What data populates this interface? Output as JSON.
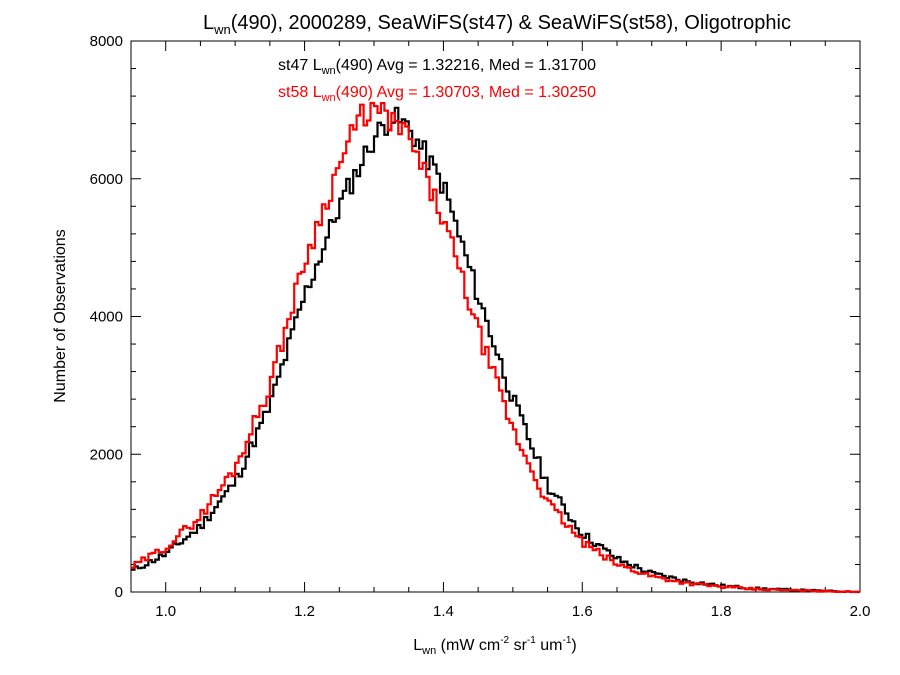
{
  "chart_data": {
    "type": "line",
    "title": {
      "main": "L",
      "sub": "wn",
      "rest": "(490), 2000289, SeaWiFS(st47) & SeaWiFS(st58), Oligotrophic"
    },
    "xlabel": {
      "main": "L",
      "sub": "wn",
      "pre": " (mW cm",
      "sup1": "-2",
      "mid": " sr",
      "sup2": "-1",
      "mid2": " um",
      "sup3": "-1",
      "post": ")"
    },
    "ylabel": "Number of Observations",
    "xlim": [
      0.95,
      2.0
    ],
    "ylim": [
      0,
      8000
    ],
    "xticks": [
      1.0,
      1.2,
      1.4,
      1.6,
      1.8,
      2.0
    ],
    "xtick_labels": [
      "1.0",
      "1.2",
      "1.4",
      "1.6",
      "1.8",
      "2.0"
    ],
    "yticks": [
      0,
      2000,
      4000,
      6000,
      8000
    ],
    "ytick_labels": [
      "0",
      "2000",
      "4000",
      "6000",
      "8000"
    ],
    "grid": false,
    "legend": [
      {
        "prefix": "st47 L",
        "sub": "wn",
        "suffix": "(490) Avg = 1.32216, Med = 1.31700",
        "color": "#000000"
      },
      {
        "prefix": "st58 L",
        "sub": "wn",
        "suffix": "(490) Avg = 1.30703, Med = 1.30250",
        "color": "#ff0000"
      }
    ],
    "series": [
      {
        "color": "#000000",
        "x": [
          0.95,
          1.0,
          1.05,
          1.1,
          1.15,
          1.2,
          1.25,
          1.3,
          1.325,
          1.35,
          1.4,
          1.45,
          1.5,
          1.55,
          1.6,
          1.65,
          1.7,
          1.75,
          1.8,
          1.85,
          1.9,
          1.95,
          2.0
        ],
        "y": [
          300,
          550,
          950,
          1600,
          2700,
          4300,
          5600,
          6600,
          6900,
          6750,
          5900,
          4300,
          2800,
          1550,
          850,
          480,
          270,
          160,
          90,
          50,
          30,
          15,
          0
        ]
      },
      {
        "color": "#ff0000",
        "x": [
          0.95,
          1.0,
          1.05,
          1.1,
          1.15,
          1.2,
          1.25,
          1.28,
          1.3,
          1.325,
          1.35,
          1.4,
          1.45,
          1.5,
          1.55,
          1.6,
          1.65,
          1.7,
          1.75,
          1.8,
          1.85,
          1.9,
          1.95,
          2.0
        ],
        "y": [
          350,
          650,
          1100,
          1800,
          3000,
          4800,
          6200,
          6900,
          7000,
          6850,
          6600,
          5400,
          3800,
          2350,
          1300,
          720,
          400,
          230,
          130,
          75,
          40,
          25,
          12,
          0
        ]
      }
    ]
  }
}
